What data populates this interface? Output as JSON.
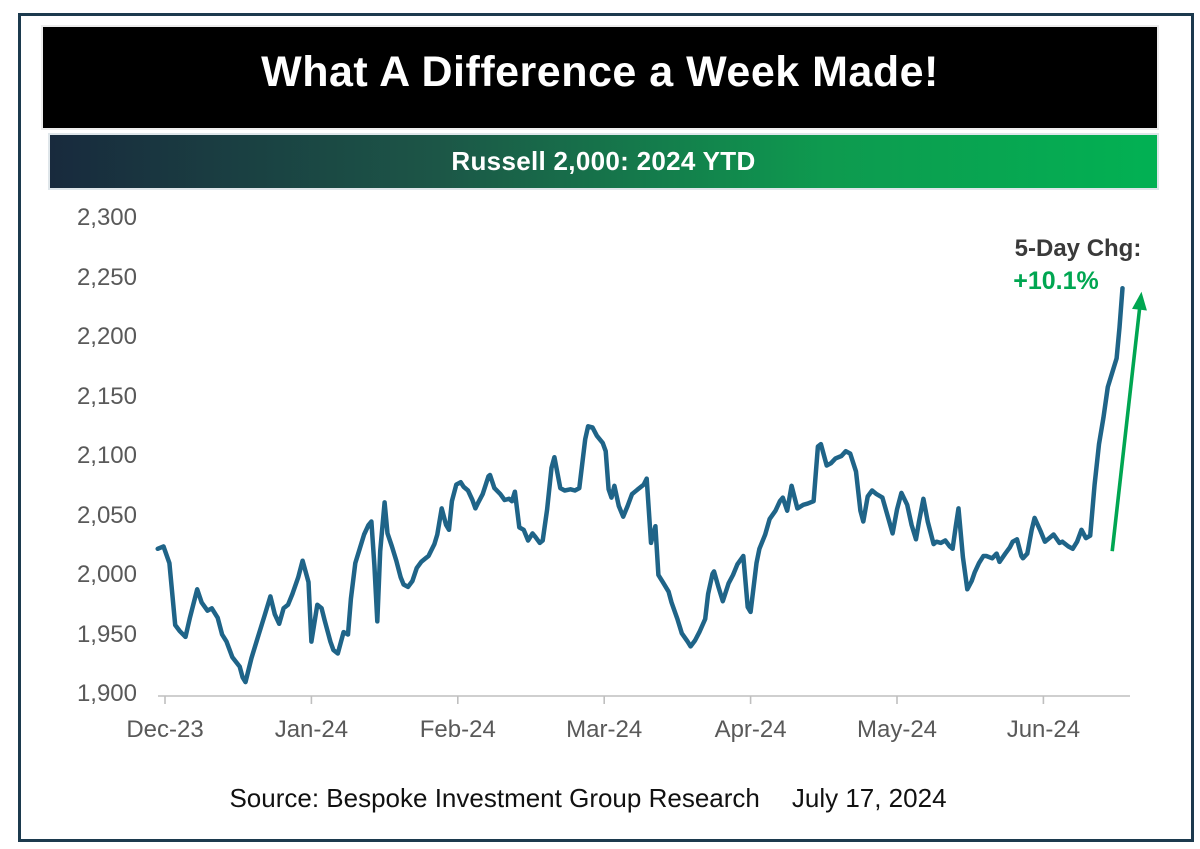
{
  "header": {
    "title": "What A Difference a Week Made!",
    "subtitle": "Russell 2,000: 2024 YTD",
    "title_bg": "#000000",
    "title_color": "#ffffff",
    "subtitle_text_color": "#ffffff",
    "subtitle_gradient": [
      "#182A3D",
      "#1C5647",
      "#0E9A4F",
      "#02B153"
    ]
  },
  "footer": {
    "source": "Source: Bespoke Investment Group Research",
    "date": "July 17, 2024"
  },
  "chart_data": {
    "type": "line",
    "title": "Russell 2,000: 2024 YTD",
    "x_unit": "months after Dec-2023 tick (0 = Dec-23, 6 = Jun-24)",
    "x_ticks": [
      "Dec-23",
      "Jan-24",
      "Feb-24",
      "Mar-24",
      "Apr-24",
      "May-24",
      "Jun-24"
    ],
    "y_ticks": [
      2300,
      2250,
      2200,
      2150,
      2100,
      2050,
      2000,
      1950,
      1900
    ],
    "y_tick_labels": [
      "2,300",
      "2,250",
      "2,200",
      "2,150",
      "2,100",
      "2,050",
      "2,000",
      "1,950",
      "1,900"
    ],
    "ylim": [
      1900,
      2300
    ],
    "grid": false,
    "legend": "none",
    "axis_color": "#BFBFBF",
    "label_color": "#595959",
    "annotation": {
      "label": "5-Day Chg:",
      "value": "+10.1%",
      "label_color": "#3a3a3a",
      "color": "#00A651",
      "arrow": {
        "from": [
          6.47,
          2020
        ],
        "to": [
          6.67,
          2238
        ]
      }
    },
    "series": [
      {
        "name": "Russell 2000 index, 2024 YTD",
        "color": "#1F6488",
        "points": [
          [
            -0.05,
            2022
          ],
          [
            -0.01,
            2024
          ],
          [
            0.03,
            2010
          ],
          [
            0.07,
            1958
          ],
          [
            0.1,
            1953
          ],
          [
            0.14,
            1948
          ],
          [
            0.17,
            1964
          ],
          [
            0.22,
            1988
          ],
          [
            0.25,
            1977
          ],
          [
            0.29,
            1970
          ],
          [
            0.32,
            1972
          ],
          [
            0.36,
            1964
          ],
          [
            0.39,
            1950
          ],
          [
            0.42,
            1944
          ],
          [
            0.46,
            1931
          ],
          [
            0.51,
            1923
          ],
          [
            0.53,
            1914
          ],
          [
            0.55,
            1910
          ],
          [
            0.59,
            1930
          ],
          [
            0.64,
            1950
          ],
          [
            0.68,
            1966
          ],
          [
            0.72,
            1982
          ],
          [
            0.75,
            1967
          ],
          [
            0.78,
            1959
          ],
          [
            0.81,
            1972
          ],
          [
            0.84,
            1975
          ],
          [
            0.87,
            1984
          ],
          [
            0.91,
            1998
          ],
          [
            0.94,
            2012
          ],
          [
            0.98,
            1994
          ],
          [
            1,
            1944
          ],
          [
            1.04,
            1975
          ],
          [
            1.07,
            1972
          ],
          [
            1.09,
            1962
          ],
          [
            1.13,
            1944
          ],
          [
            1.15,
            1937
          ],
          [
            1.18,
            1934
          ],
          [
            1.22,
            1952
          ],
          [
            1.25,
            1950
          ],
          [
            1.27,
            1980
          ],
          [
            1.3,
            2010
          ],
          [
            1.33,
            2022
          ],
          [
            1.36,
            2034
          ],
          [
            1.39,
            2042
          ],
          [
            1.41,
            2045
          ],
          [
            1.43,
            2008
          ],
          [
            1.45,
            1961
          ],
          [
            1.47,
            2020
          ],
          [
            1.5,
            2061
          ],
          [
            1.52,
            2035
          ],
          [
            1.55,
            2024
          ],
          [
            1.58,
            2012
          ],
          [
            1.61,
            1998
          ],
          [
            1.63,
            1992
          ],
          [
            1.66,
            1990
          ],
          [
            1.69,
            1995
          ],
          [
            1.72,
            2006
          ],
          [
            1.75,
            2011
          ],
          [
            1.78,
            2014
          ],
          [
            1.8,
            2016
          ],
          [
            1.84,
            2026
          ],
          [
            1.86,
            2034
          ],
          [
            1.89,
            2056
          ],
          [
            1.92,
            2042
          ],
          [
            1.94,
            2038
          ],
          [
            1.96,
            2062
          ],
          [
            1.99,
            2076
          ],
          [
            2.02,
            2078
          ],
          [
            2.04,
            2074
          ],
          [
            2.07,
            2071
          ],
          [
            2.1,
            2063
          ],
          [
            2.12,
            2056
          ],
          [
            2.14,
            2061
          ],
          [
            2.17,
            2068
          ],
          [
            2.21,
            2083
          ],
          [
            2.22,
            2084
          ],
          [
            2.25,
            2073
          ],
          [
            2.29,
            2068
          ],
          [
            2.32,
            2063
          ],
          [
            2.35,
            2064
          ],
          [
            2.37,
            2062
          ],
          [
            2.39,
            2070
          ],
          [
            2.42,
            2040
          ],
          [
            2.45,
            2038
          ],
          [
            2.48,
            2029
          ],
          [
            2.51,
            2035
          ],
          [
            2.53,
            2032
          ],
          [
            2.56,
            2027
          ],
          [
            2.58,
            2029
          ],
          [
            2.61,
            2055
          ],
          [
            2.64,
            2090
          ],
          [
            2.66,
            2099
          ],
          [
            2.7,
            2073
          ],
          [
            2.73,
            2071
          ],
          [
            2.77,
            2072
          ],
          [
            2.8,
            2071
          ],
          [
            2.83,
            2073
          ],
          [
            2.87,
            2114
          ],
          [
            2.89,
            2125
          ],
          [
            2.92,
            2124
          ],
          [
            2.95,
            2117
          ],
          [
            2.99,
            2111
          ],
          [
            3.01,
            2104
          ],
          [
            3.03,
            2072
          ],
          [
            3.05,
            2065
          ],
          [
            3.07,
            2075
          ],
          [
            3.1,
            2058
          ],
          [
            3.13,
            2049
          ],
          [
            3.16,
            2058
          ],
          [
            3.19,
            2068
          ],
          [
            3.23,
            2072
          ],
          [
            3.27,
            2076
          ],
          [
            3.29,
            2081
          ],
          [
            3.32,
            2027
          ],
          [
            3.35,
            2041
          ],
          [
            3.37,
            2000
          ],
          [
            3.4,
            1994
          ],
          [
            3.44,
            1986
          ],
          [
            3.46,
            1977
          ],
          [
            3.5,
            1963
          ],
          [
            3.53,
            1951
          ],
          [
            3.57,
            1944
          ],
          [
            3.59,
            1940
          ],
          [
            3.62,
            1945
          ],
          [
            3.65,
            1952
          ],
          [
            3.69,
            1963
          ],
          [
            3.71,
            1984
          ],
          [
            3.74,
            2001
          ],
          [
            3.75,
            2003
          ],
          [
            3.78,
            1990
          ],
          [
            3.81,
            1978
          ],
          [
            3.85,
            1993
          ],
          [
            3.88,
            2000
          ],
          [
            3.91,
            2009
          ],
          [
            3.95,
            2016
          ],
          [
            3.98,
            1973
          ],
          [
            4,
            1969
          ],
          [
            4.04,
            2010
          ],
          [
            4.06,
            2022
          ],
          [
            4.1,
            2034
          ],
          [
            4.13,
            2047
          ],
          [
            4.17,
            2054
          ],
          [
            4.2,
            2062
          ],
          [
            4.22,
            2065
          ],
          [
            4.25,
            2054
          ],
          [
            4.28,
            2075
          ],
          [
            4.32,
            2056
          ],
          [
            4.36,
            2059
          ],
          [
            4.39,
            2060
          ],
          [
            4.43,
            2062
          ],
          [
            4.46,
            2108
          ],
          [
            4.48,
            2110
          ],
          [
            4.52,
            2092
          ],
          [
            4.55,
            2094
          ],
          [
            4.58,
            2098
          ],
          [
            4.62,
            2100
          ],
          [
            4.65,
            2104
          ],
          [
            4.68,
            2102
          ],
          [
            4.72,
            2087
          ],
          [
            4.75,
            2054
          ],
          [
            4.77,
            2045
          ],
          [
            4.8,
            2066
          ],
          [
            4.83,
            2071
          ],
          [
            4.86,
            2068
          ],
          [
            4.9,
            2065
          ],
          [
            4.94,
            2048
          ],
          [
            4.97,
            2035
          ],
          [
            5,
            2055
          ],
          [
            5.03,
            2069
          ],
          [
            5.07,
            2059
          ],
          [
            5.1,
            2042
          ],
          [
            5.13,
            2030
          ],
          [
            5.15,
            2045
          ],
          [
            5.18,
            2064
          ],
          [
            5.21,
            2045
          ],
          [
            5.25,
            2026
          ],
          [
            5.27,
            2028
          ],
          [
            5.3,
            2027
          ],
          [
            5.33,
            2029
          ],
          [
            5.36,
            2024
          ],
          [
            5.38,
            2022
          ],
          [
            5.4,
            2040
          ],
          [
            5.42,
            2056
          ],
          [
            5.45,
            2015
          ],
          [
            5.48,
            1988
          ],
          [
            5.51,
            1995
          ],
          [
            5.53,
            2002
          ],
          [
            5.56,
            2010
          ],
          [
            5.59,
            2016
          ],
          [
            5.61,
            2016
          ],
          [
            5.65,
            2014
          ],
          [
            5.68,
            2018
          ],
          [
            5.7,
            2011
          ],
          [
            5.74,
            2018
          ],
          [
            5.77,
            2023
          ],
          [
            5.79,
            2028
          ],
          [
            5.82,
            2030
          ],
          [
            5.85,
            2016
          ],
          [
            5.86,
            2014
          ],
          [
            5.89,
            2018
          ],
          [
            5.92,
            2038
          ],
          [
            5.94,
            2048
          ],
          [
            5.98,
            2037
          ],
          [
            6.01,
            2028
          ],
          [
            6.04,
            2031
          ],
          [
            6.07,
            2034
          ],
          [
            6.11,
            2027
          ],
          [
            6.13,
            2028
          ],
          [
            6.17,
            2024
          ],
          [
            6.2,
            2022
          ],
          [
            6.23,
            2028
          ],
          [
            6.26,
            2038
          ],
          [
            6.29,
            2031
          ],
          [
            6.32,
            2033
          ],
          [
            6.35,
            2076
          ],
          [
            6.38,
            2110
          ],
          [
            6.41,
            2132
          ],
          [
            6.44,
            2158
          ],
          [
            6.47,
            2170
          ],
          [
            6.5,
            2182
          ],
          [
            6.52,
            2208
          ],
          [
            6.54,
            2241
          ]
        ]
      }
    ]
  }
}
